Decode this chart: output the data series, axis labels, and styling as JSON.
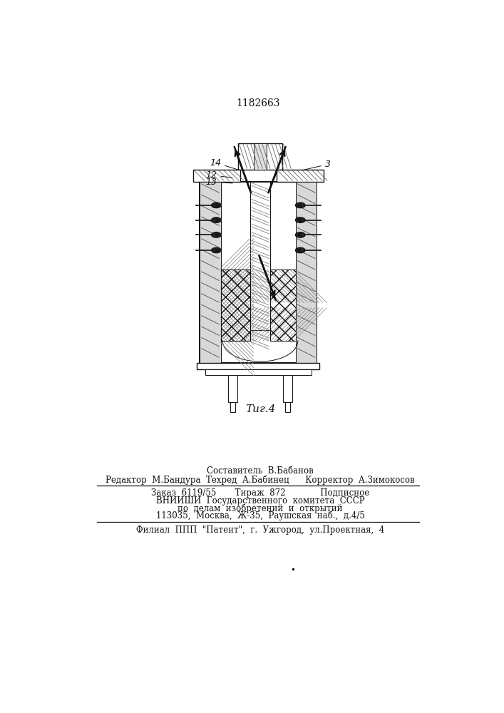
{
  "patent_number": "1182663",
  "fig_caption": "Τиг.4",
  "line1_staff": "Составитель  В.Бабанов",
  "line2_staff": "Редактор  М.Бандура  Техред  А.Бабинец      Корректор  А.Зимокосов",
  "line3_order": "Заказ  6119/55       Тираж  872             Подписное",
  "line4_vniishi": "ВНИИШИ  Государственного  комитета  СССР",
  "line5_affairs": "по  делам  изобретений  и  открытий",
  "line6_address": "113035,  Москва,  Ж-35,  Раушская  наб.,  д.4/5",
  "line7_filial": "Филиал  ППП  \"Патент\",  г.  Ужгород,  ул.Проектная,  4",
  "bg_color": "#ffffff",
  "label_14": "14",
  "label_12": "12",
  "label_13": "13",
  "label_3": "3"
}
